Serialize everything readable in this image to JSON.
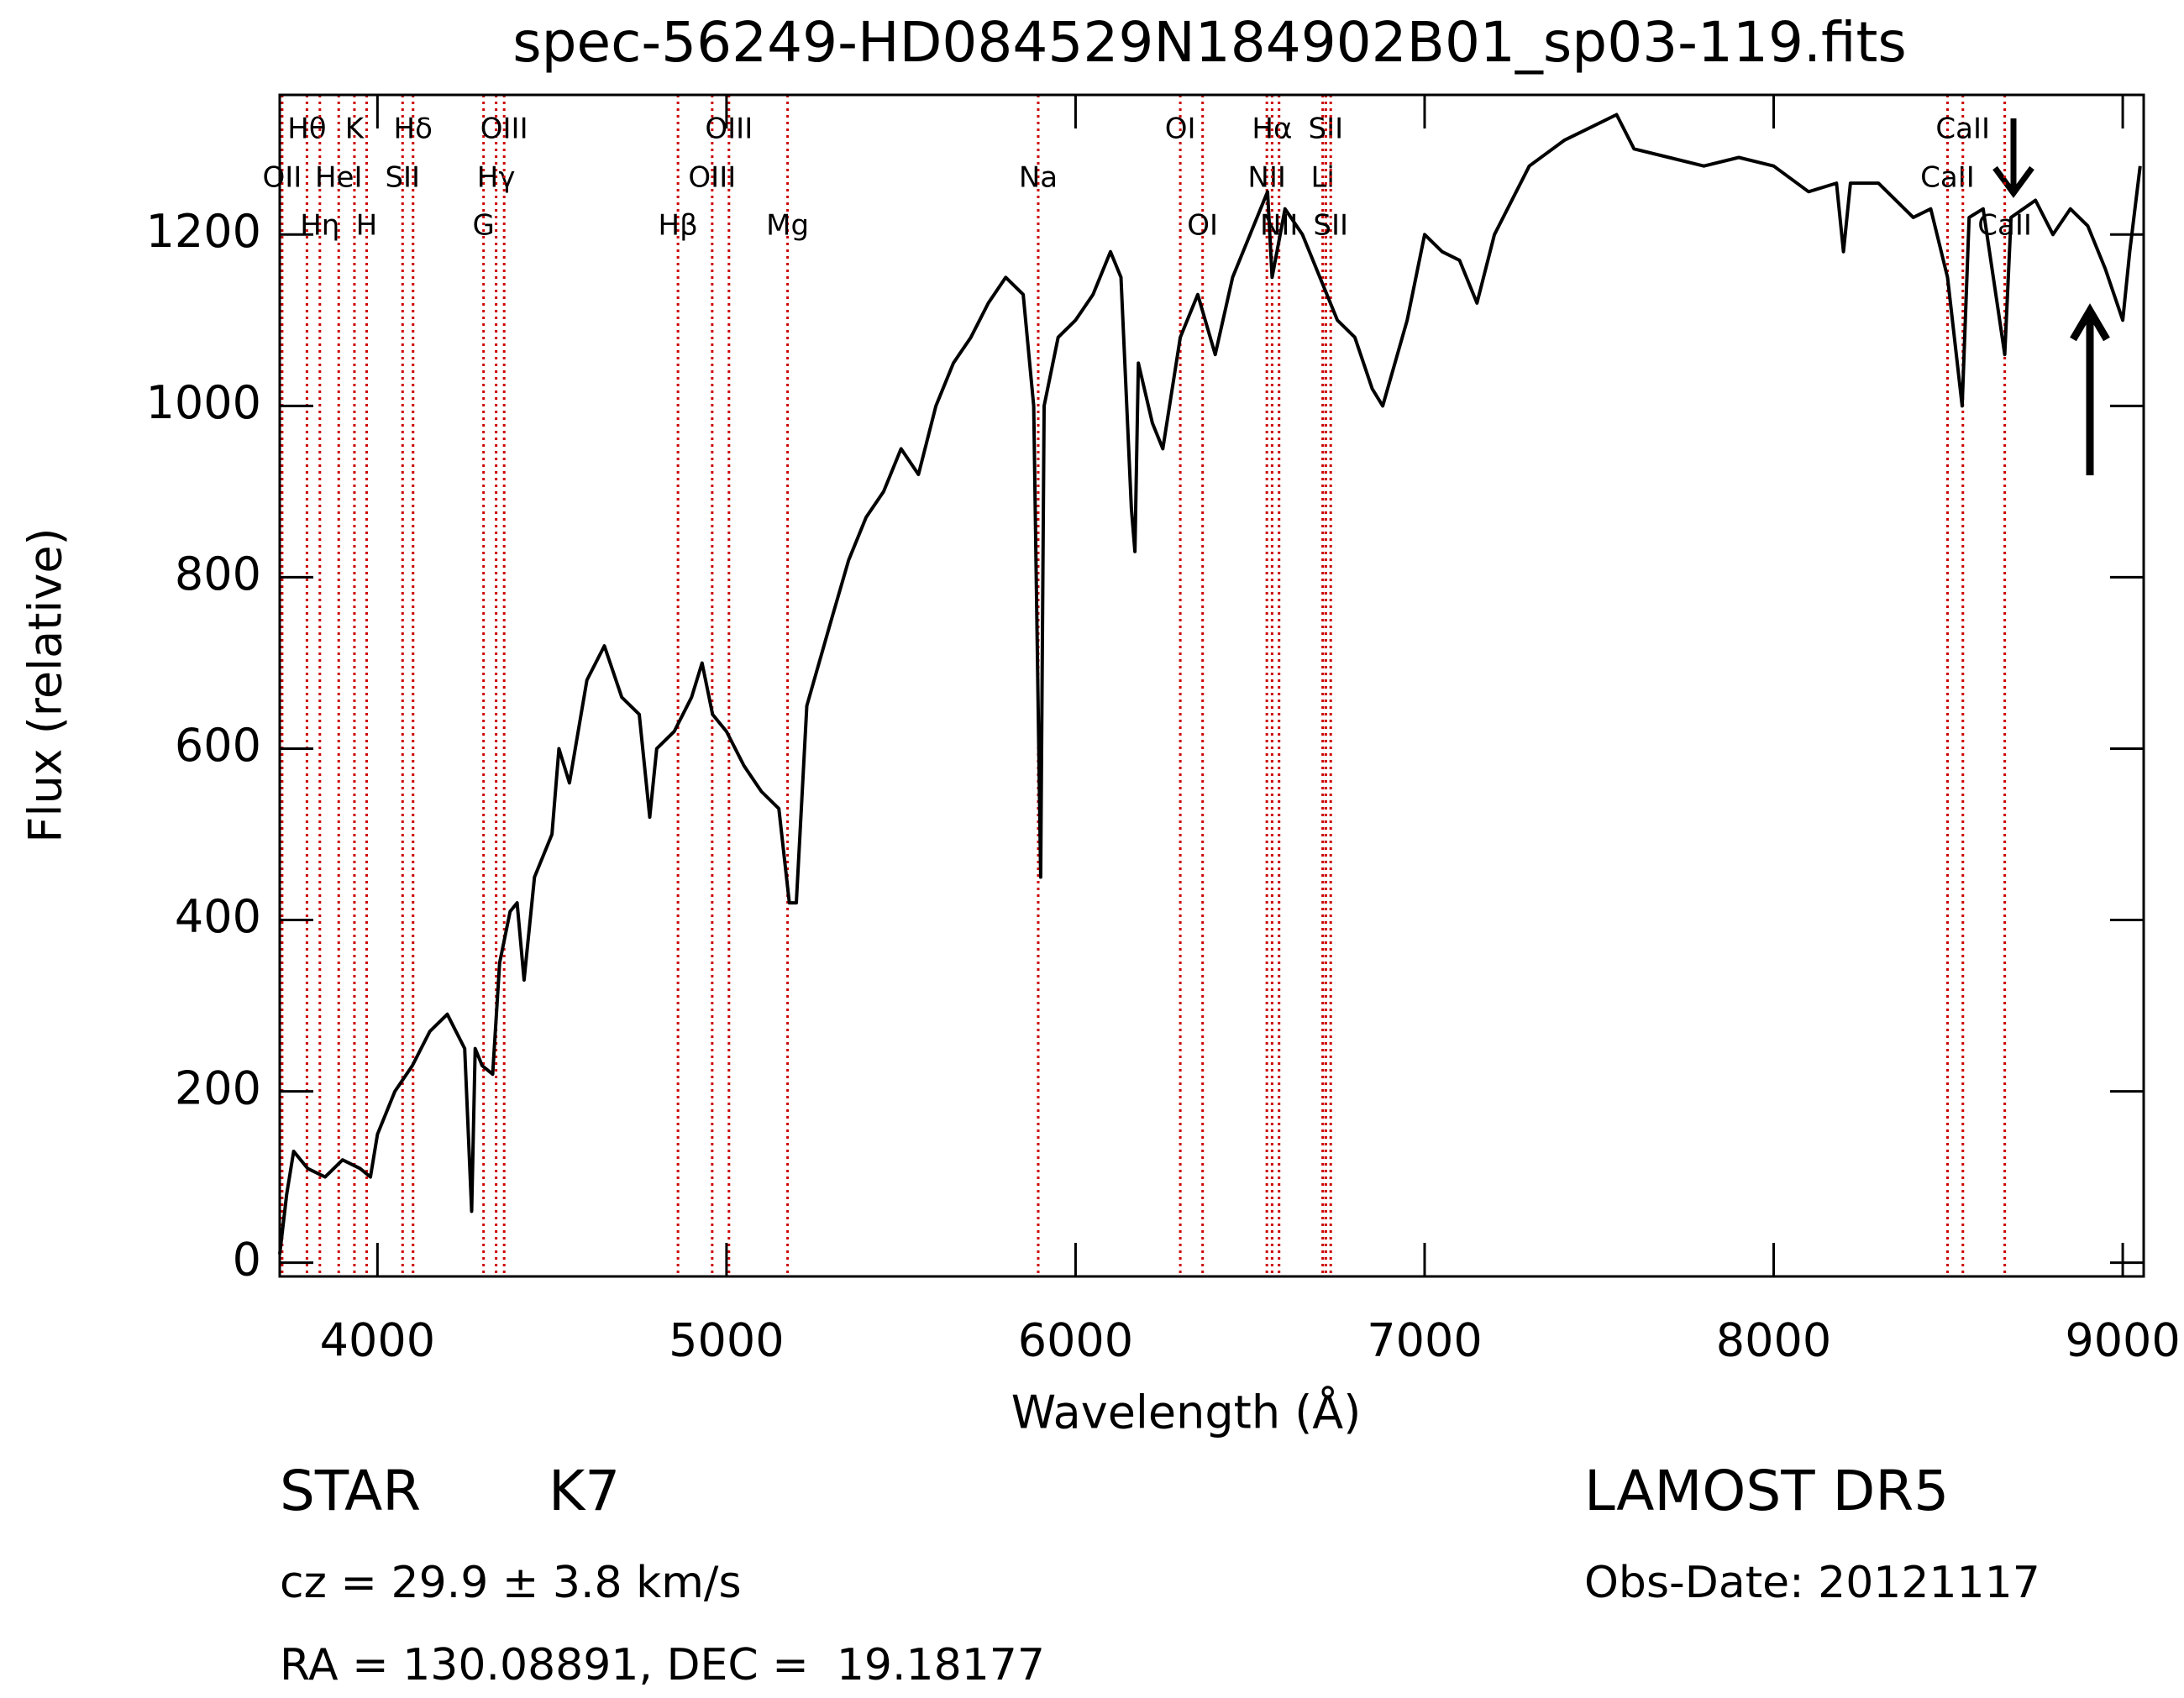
{
  "chart_data": {
    "type": "line",
    "title": "spec-56249-HD084529N184902B01_sp03-119.fits",
    "x_label": "Wavelength (Å)",
    "y_label": "Flux (relative)",
    "color": "#000000",
    "line_color": "#cc0000",
    "xlim": [
      3720,
      9060
    ],
    "ylim": [
      -16,
      1363
    ],
    "xticks": [
      4000,
      5000,
      6000,
      7000,
      8000,
      9000
    ],
    "yticks": [
      0,
      200,
      400,
      600,
      800,
      1000,
      1200
    ],
    "x": [
      3720,
      3740,
      3760,
      3800,
      3850,
      3900,
      3950,
      3980,
      4000,
      4050,
      4100,
      4150,
      4200,
      4250,
      4270,
      4280,
      4300,
      4330,
      4350,
      4380,
      4400,
      4420,
      4450,
      4500,
      4520,
      4550,
      4600,
      4650,
      4700,
      4750,
      4780,
      4800,
      4850,
      4900,
      4930,
      4960,
      5000,
      5050,
      5100,
      5150,
      5180,
      5200,
      5230,
      5300,
      5350,
      5400,
      5450,
      5500,
      5550,
      5600,
      5650,
      5700,
      5750,
      5800,
      5850,
      5880,
      5900,
      5910,
      5950,
      6000,
      6050,
      6100,
      6130,
      6160,
      6170,
      6180,
      6220,
      6250,
      6300,
      6350,
      6400,
      6450,
      6500,
      6550,
      6563,
      6600,
      6650,
      6700,
      6750,
      6800,
      6850,
      6880,
      6950,
      7000,
      7050,
      7100,
      7150,
      7200,
      7300,
      7400,
      7500,
      7550,
      7600,
      7700,
      7800,
      7900,
      8000,
      8100,
      8180,
      8200,
      8220,
      8300,
      8400,
      8450,
      8498,
      8540,
      8560,
      8600,
      8662,
      8680,
      8750,
      8800,
      8850,
      8900,
      8950,
      9000,
      9020,
      9050
    ],
    "values": [
      10,
      80,
      130,
      110,
      100,
      120,
      110,
      100,
      150,
      200,
      230,
      270,
      290,
      250,
      60,
      250,
      230,
      220,
      350,
      410,
      420,
      330,
      450,
      500,
      600,
      560,
      680,
      720,
      660,
      640,
      520,
      600,
      620,
      660,
      700,
      640,
      620,
      580,
      550,
      530,
      420,
      420,
      650,
      750,
      820,
      870,
      900,
      950,
      920,
      1000,
      1050,
      1080,
      1120,
      1150,
      1130,
      1000,
      450,
      1000,
      1080,
      1100,
      1130,
      1180,
      1150,
      880,
      830,
      1050,
      980,
      950,
      1080,
      1130,
      1060,
      1150,
      1200,
      1250,
      1150,
      1230,
      1200,
      1150,
      1100,
      1080,
      1020,
      1000,
      1100,
      1200,
      1180,
      1170,
      1120,
      1200,
      1280,
      1310,
      1330,
      1340,
      1300,
      1290,
      1280,
      1290,
      1280,
      1250,
      1260,
      1180,
      1260,
      1260,
      1220,
      1230,
      1150,
      1000,
      1220,
      1230,
      1060,
      1220,
      1240,
      1200,
      1230,
      1210,
      1160,
      1100,
      1180,
      1280
    ],
    "lines": [
      {
        "label": "OII",
        "wavelength": 3727
      },
      {
        "label": "Hθ",
        "wavelength": 3798
      },
      {
        "label": "Hη",
        "wavelength": 3835
      },
      {
        "label": "HeI",
        "wavelength": 3889
      },
      {
        "label": "K",
        "wavelength": 3934
      },
      {
        "label": "H",
        "wavelength": 3969
      },
      {
        "label": "SII",
        "wavelength": 4072
      },
      {
        "label": "Hδ",
        "wavelength": 4102
      },
      {
        "label": "G",
        "wavelength": 4304
      },
      {
        "label": "Hγ",
        "wavelength": 4340
      },
      {
        "label": "OIII",
        "wavelength": 4363
      },
      {
        "label": "Hβ",
        "wavelength": 4861
      },
      {
        "label": "OIII",
        "wavelength": 4959
      },
      {
        "label": "OIII",
        "wavelength": 5007
      },
      {
        "label": "Mg",
        "wavelength": 5175
      },
      {
        "label": "Na",
        "wavelength": 5893
      },
      {
        "label": "OI",
        "wavelength": 6300
      },
      {
        "label": "OI",
        "wavelength": 6364
      },
      {
        "label": "NII",
        "wavelength": 6548
      },
      {
        "label": "Hα",
        "wavelength": 6563
      },
      {
        "label": "NII",
        "wavelength": 6583
      },
      {
        "label": "Li",
        "wavelength": 6708
      },
      {
        "label": "SII",
        "wavelength": 6717
      },
      {
        "label": "SII",
        "wavelength": 6731
      },
      {
        "label": "CaII",
        "wavelength": 8498
      },
      {
        "label": "CaII",
        "wavelength": 8542
      },
      {
        "label": "CaII",
        "wavelength": 8662
      }
    ],
    "info": {
      "object": "STAR",
      "class": "K7",
      "cz": "cz = 29.9 ± 3.8 km/s",
      "coords": "RA = 130.08891, DEC =  19.18177",
      "survey": "LAMOST DR5",
      "obs_date": "Obs-Date: 20121117"
    }
  }
}
